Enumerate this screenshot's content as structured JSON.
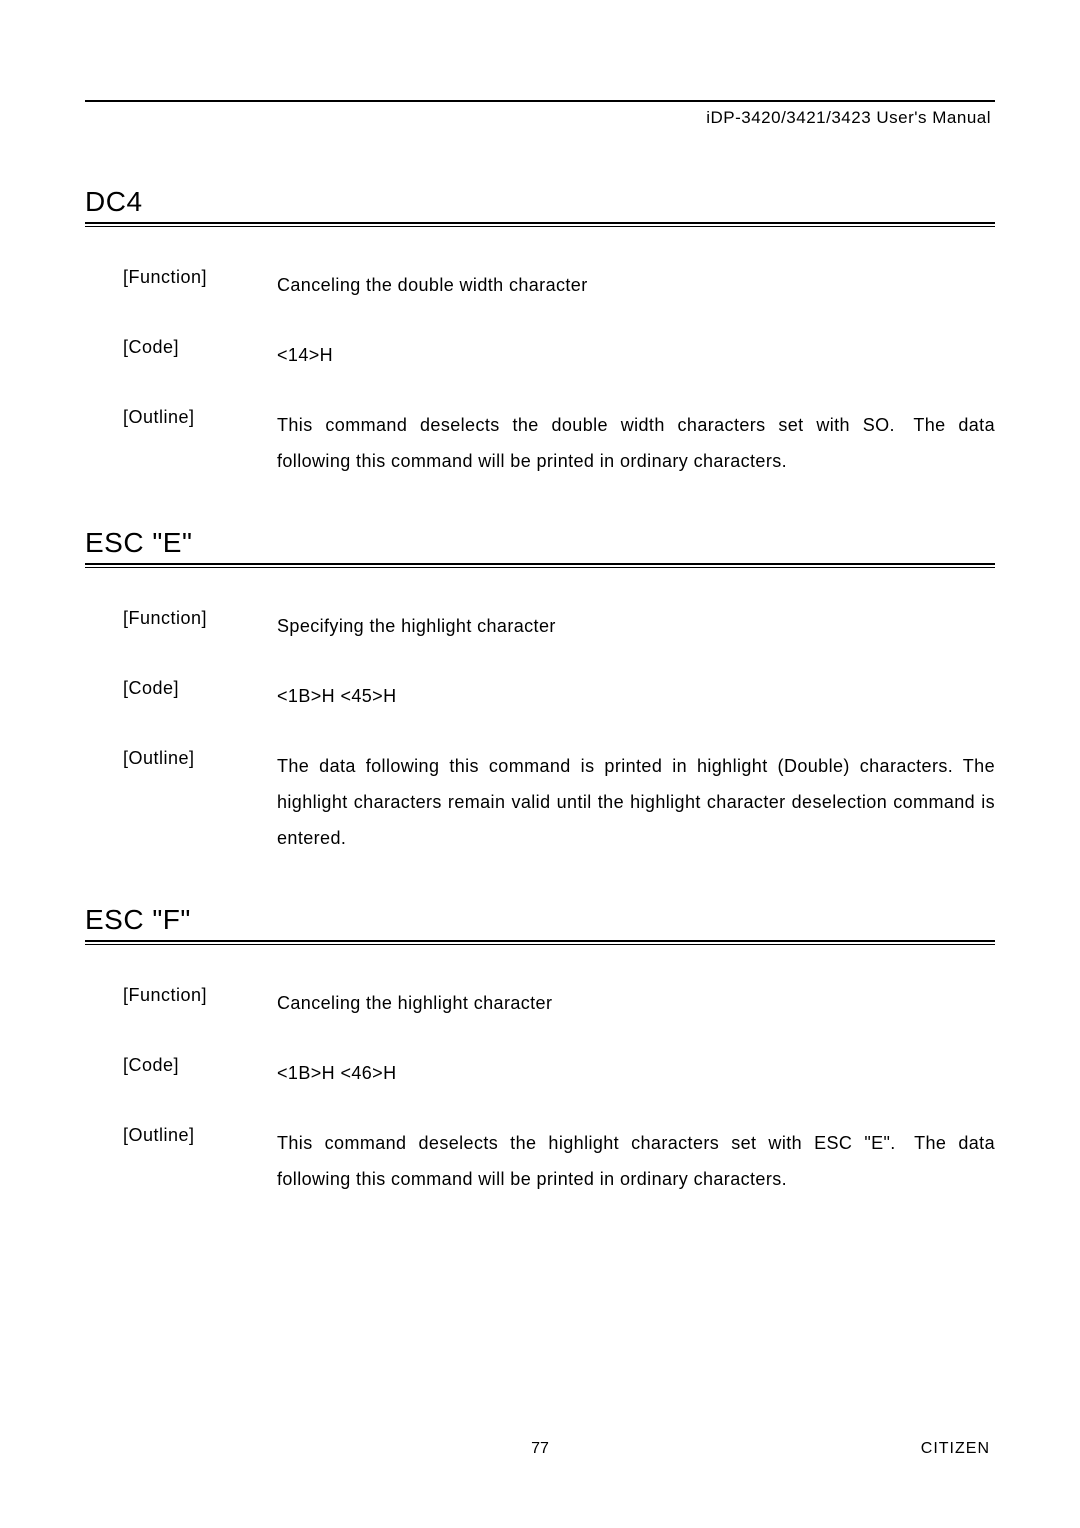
{
  "header": {
    "text": "iDP-3420/3421/3423 User's Manual"
  },
  "sections": [
    {
      "title": "DC4",
      "rows": [
        {
          "label": "[Function]",
          "value": "Canceling the double width character"
        },
        {
          "label": "[Code]",
          "value": "<14>H"
        },
        {
          "label": "[Outline]",
          "value": "This command deselects the double width characters set with SO. The data following this command will be printed in ordinary characters."
        }
      ]
    },
    {
      "title": "ESC \"E\"",
      "rows": [
        {
          "label": "[Function]",
          "value": "Specifying the highlight character"
        },
        {
          "label": "[Code]",
          "value": "<1B>H <45>H"
        },
        {
          "label": "[Outline]",
          "value": "The data following this command is printed in highlight (Double) characters. The highlight characters remain valid until the highlight character deselection command is entered."
        }
      ]
    },
    {
      "title": "ESC \"F\"",
      "rows": [
        {
          "label": "[Function]",
          "value": "Canceling the highlight character"
        },
        {
          "label": "[Code]",
          "value": "<1B>H <46>H"
        },
        {
          "label": "[Outline]",
          "value": "This command deselects the highlight characters set with ESC \"E\". The data following this command will be printed in ordinary characters."
        }
      ]
    }
  ],
  "footer": {
    "page": "77",
    "brand": "CITIZEN"
  }
}
